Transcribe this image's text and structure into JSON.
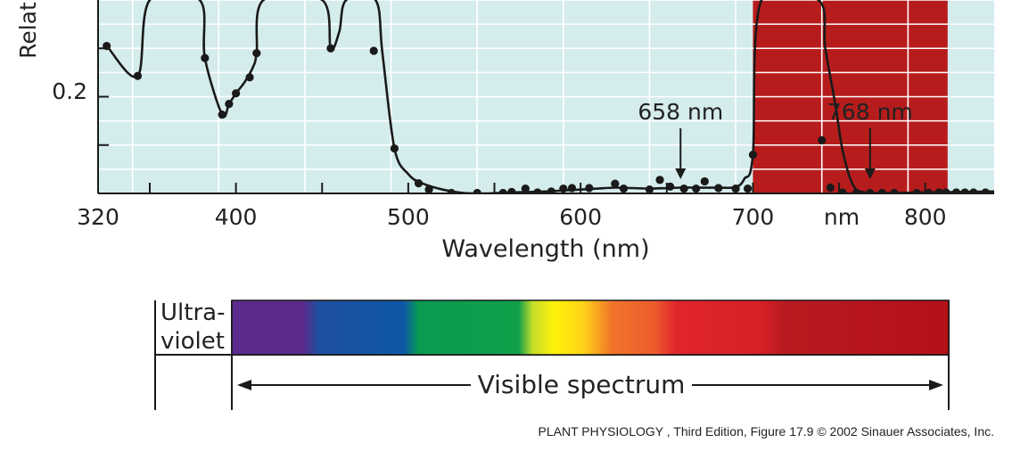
{
  "chart_data": {
    "type": "line",
    "ylabel": "Relat",
    "xlabel": "Wavelength (nm)",
    "x_ticks": [
      {
        "value": 320,
        "label": "320"
      },
      {
        "value": 400,
        "label": "400"
      },
      {
        "value": 500,
        "label": "500"
      },
      {
        "value": 600,
        "label": "600"
      },
      {
        "value": 700,
        "label": "700"
      },
      {
        "value": 800,
        "label": "800"
      }
    ],
    "x_unit_label": "nm",
    "y_ticks": [
      {
        "value": 0.2,
        "label": "0.2"
      }
    ],
    "xlim": [
      320,
      840
    ],
    "ylim": [
      0.0,
      0.4
    ],
    "grid": true,
    "colors": {
      "plot_background": "#d5eced",
      "highlight_band": "#b71c1c",
      "curve": "#1a1a1a",
      "grid": "#ffffff"
    },
    "highlight_band": {
      "x_start": 700,
      "x_end": 813
    },
    "annotations": [
      {
        "label": "658 nm",
        "x": 658
      },
      {
        "label": "768 nm",
        "x": 768
      }
    ],
    "series": [
      {
        "points": [
          [
            325,
            0.305
          ],
          [
            343,
            0.243
          ],
          [
            350,
            0.4
          ],
          [
            379,
            0.4
          ],
          [
            382,
            0.28
          ],
          [
            392,
            0.163
          ],
          [
            396,
            0.185
          ],
          [
            400,
            0.207
          ],
          [
            405,
            0.23
          ],
          [
            410,
            0.262
          ],
          [
            412,
            0.29
          ],
          [
            416,
            0.4
          ],
          [
            450,
            0.4
          ],
          [
            455,
            0.3
          ],
          [
            460,
            0.335
          ],
          [
            464,
            0.4
          ],
          [
            481,
            0.4
          ],
          [
            485,
            0.29
          ],
          [
            492,
            0.093
          ],
          [
            500,
            0.04
          ],
          [
            508,
            0.021
          ],
          [
            520,
            0.008
          ],
          [
            532,
            0.001
          ],
          [
            545,
            0.0
          ],
          [
            560,
            0.002
          ],
          [
            570,
            0.003
          ],
          [
            580,
            0.004
          ],
          [
            590,
            0.006
          ],
          [
            600,
            0.008
          ],
          [
            610,
            0.01
          ],
          [
            620,
            0.012
          ],
          [
            630,
            0.011
          ],
          [
            640,
            0.01
          ],
          [
            650,
            0.011
          ],
          [
            658,
            0.012
          ],
          [
            666,
            0.012
          ],
          [
            680,
            0.012
          ],
          [
            690,
            0.013
          ],
          [
            695,
            0.03
          ],
          [
            700,
            0.08
          ],
          [
            705,
            0.4
          ],
          [
            738,
            0.4
          ],
          [
            742,
            0.3
          ],
          [
            748,
            0.18
          ],
          [
            752,
            0.09
          ],
          [
            758,
            0.018
          ],
          [
            765,
            0.002
          ],
          [
            780,
            0.001
          ],
          [
            800,
            0.002
          ],
          [
            820,
            0.003
          ],
          [
            840,
            0.004
          ]
        ],
        "markers": [
          [
            325,
            0.305
          ],
          [
            343,
            0.243
          ],
          [
            382,
            0.28
          ],
          [
            392,
            0.163
          ],
          [
            396,
            0.185
          ],
          [
            400,
            0.207
          ],
          [
            408,
            0.24
          ],
          [
            412,
            0.29
          ],
          [
            455,
            0.3
          ],
          [
            480,
            0.295
          ],
          [
            492,
            0.093
          ],
          [
            506,
            0.021
          ],
          [
            512,
            0.008
          ],
          [
            525,
            0.001
          ],
          [
            540,
            0.001
          ],
          [
            555,
            0.001
          ],
          [
            560,
            0.003
          ],
          [
            568,
            0.01
          ],
          [
            575,
            0.002
          ],
          [
            583,
            0.004
          ],
          [
            590,
            0.01
          ],
          [
            595,
            0.011
          ],
          [
            605,
            0.011
          ],
          [
            620,
            0.02
          ],
          [
            625,
            0.01
          ],
          [
            640,
            0.008
          ],
          [
            646,
            0.028
          ],
          [
            652,
            0.014
          ],
          [
            660,
            0.01
          ],
          [
            667,
            0.01
          ],
          [
            672,
            0.025
          ],
          [
            680,
            0.011
          ],
          [
            690,
            0.01
          ],
          [
            697,
            0.01
          ],
          [
            700,
            0.08
          ],
          [
            740,
            0.11
          ],
          [
            745,
            0.012
          ],
          [
            752,
            0.002
          ],
          [
            760,
            0.001
          ],
          [
            768,
            0.001
          ],
          [
            775,
            0.001
          ],
          [
            782,
            0.001
          ],
          [
            795,
            0.001
          ],
          [
            802,
            0.001
          ],
          [
            808,
            0.002
          ],
          [
            812,
            0.002
          ],
          [
            818,
            0.002
          ],
          [
            823,
            0.002
          ],
          [
            828,
            0.002
          ],
          [
            835,
            0.002
          ]
        ]
      }
    ]
  },
  "spectrum": {
    "uv_label_line1": "Ultra-",
    "uv_label_line2": "violet",
    "visible_label": "Visible spectrum",
    "gradient_stops": [
      {
        "offset": 0.0,
        "color": "#5b2a8c"
      },
      {
        "offset": 0.1,
        "color": "#5b2a8c"
      },
      {
        "offset": 0.12,
        "color": "#1f4f9e"
      },
      {
        "offset": 0.24,
        "color": "#0d58a8"
      },
      {
        "offset": 0.26,
        "color": "#0a9a52"
      },
      {
        "offset": 0.4,
        "color": "#10a04a"
      },
      {
        "offset": 0.42,
        "color": "#c6dd2a"
      },
      {
        "offset": 0.45,
        "color": "#fff20a"
      },
      {
        "offset": 0.49,
        "color": "#ffd418"
      },
      {
        "offset": 0.53,
        "color": "#f0752a"
      },
      {
        "offset": 0.59,
        "color": "#ee5a2d"
      },
      {
        "offset": 0.62,
        "color": "#e1252d"
      },
      {
        "offset": 0.74,
        "color": "#d61f26"
      },
      {
        "offset": 0.77,
        "color": "#b81b1f"
      },
      {
        "offset": 1.0,
        "color": "#b31118"
      }
    ]
  },
  "credit": {
    "text": "PLANT PHYSIOLOGY , Third Edition, Figure 17.9  © 2002 Sinauer Associates, Inc."
  }
}
